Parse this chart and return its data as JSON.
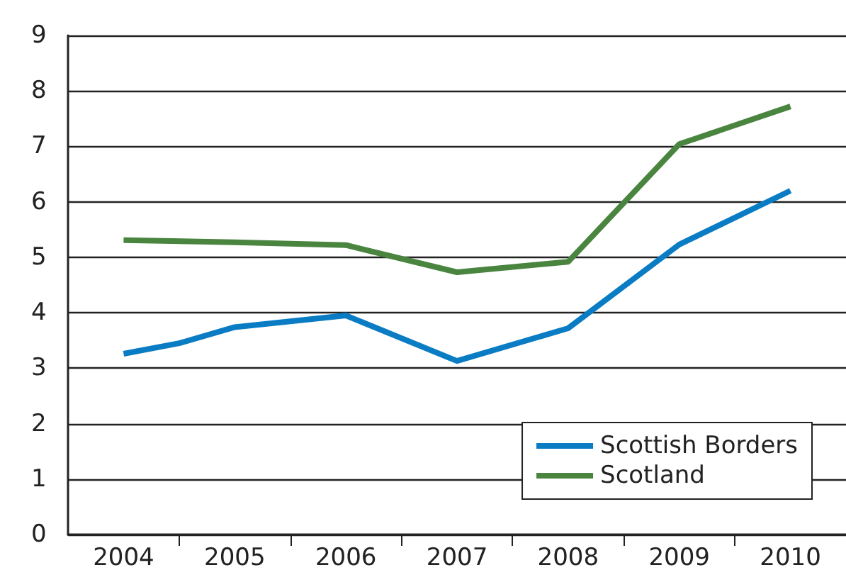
{
  "chart_data": {
    "type": "line",
    "xlim": [
      2003.5,
      2010.5
    ],
    "xticks": [
      2004,
      {
        "value": 2004.5,
        "label": null
      },
      2005,
      {
        "value": 2005.5,
        "label": null
      },
      2006,
      {
        "value": 2006.5,
        "label": null
      },
      2007,
      {
        "value": 2007.5,
        "label": null
      },
      2008,
      {
        "value": 2008.5,
        "label": null
      },
      2009,
      {
        "value": 2009.5,
        "label": null
      },
      2010
    ],
    "ylim": [
      0,
      9
    ],
    "yticks": [
      0,
      1,
      2,
      3,
      4,
      5,
      6,
      7,
      8,
      9
    ],
    "grid": "y",
    "legend": "bottom right",
    "marker": "none",
    "line_style": "solid",
    "series": [
      {
        "name": "Scottish Borders",
        "color": "#0a7cc4",
        "x": [
          2004,
          2004.5,
          2005,
          2006,
          2007,
          2008,
          2009,
          2010
        ],
        "values": [
          3.26,
          3.45,
          3.74,
          3.95,
          3.13,
          3.72,
          5.23,
          6.2
        ]
      },
      {
        "name": "Scotland",
        "color": "#4a8540",
        "x": [
          2004,
          2005,
          2006,
          2007,
          2008,
          2009,
          2010
        ],
        "values": [
          5.31,
          5.27,
          5.22,
          4.73,
          4.92,
          7.04,
          7.72
        ]
      }
    ]
  }
}
